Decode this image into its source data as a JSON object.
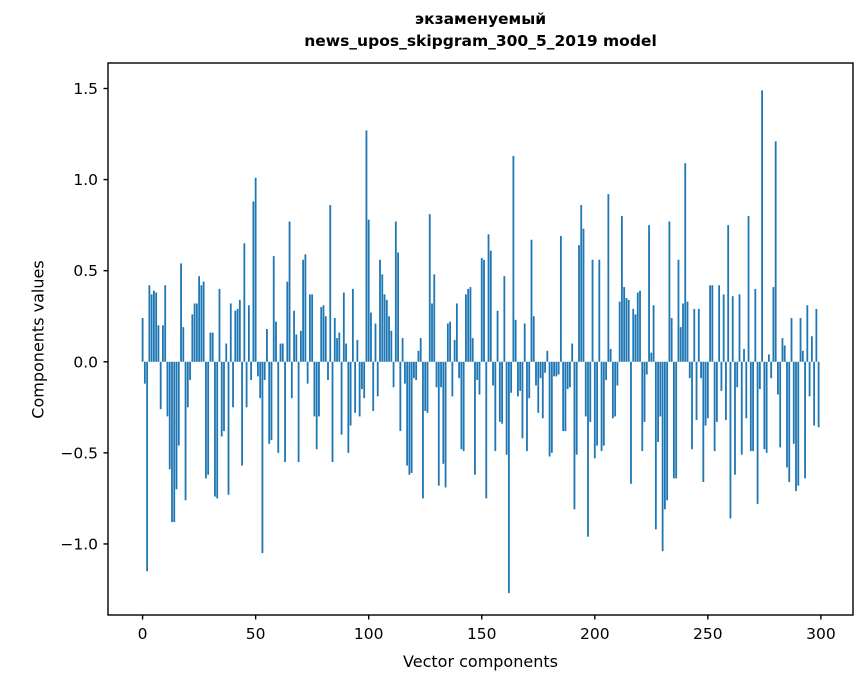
{
  "chart_data": {
    "type": "bar",
    "title": "экзаменуемый",
    "subtitle": "news_upos_skipgram_300_5_2019 model",
    "xlabel": "Vector components",
    "ylabel": "Components values",
    "bar_color": "#1f77b4",
    "axis_color": "#000000",
    "xticks": [
      0,
      50,
      100,
      150,
      200,
      250,
      300
    ],
    "yticks": [
      -1.0,
      -0.5,
      0.0,
      0.5,
      1.0,
      1.5
    ],
    "xlim": [
      -15.3,
      314.2
    ],
    "ylim": [
      -1.39,
      1.64
    ],
    "bar_width_units": 0.8,
    "x_start": 0,
    "legend": "none",
    "grid": false,
    "values": [
      0.24,
      -0.12,
      -1.15,
      0.42,
      0.37,
      0.39,
      0.38,
      0.2,
      -0.26,
      0.2,
      0.42,
      -0.3,
      -0.59,
      -0.88,
      -0.88,
      -0.7,
      -0.46,
      0.54,
      0.19,
      -0.76,
      -0.25,
      -0.1,
      0.26,
      0.32,
      0.32,
      0.47,
      0.42,
      0.44,
      -0.64,
      -0.62,
      0.16,
      0.16,
      -0.74,
      -0.75,
      0.4,
      -0.41,
      -0.38,
      0.1,
      -0.73,
      0.32,
      -0.25,
      0.28,
      0.29,
      0.34,
      -0.57,
      0.65,
      -0.25,
      0.31,
      -0.1,
      0.88,
      1.01,
      -0.08,
      -0.2,
      -1.05,
      -0.1,
      0.18,
      -0.45,
      -0.43,
      0.58,
      0.22,
      -0.5,
      0.1,
      0.1,
      -0.55,
      0.44,
      0.77,
      -0.2,
      0.28,
      0.15,
      -0.55,
      0.17,
      0.56,
      0.59,
      -0.12,
      0.37,
      0.37,
      -0.3,
      -0.48,
      -0.3,
      0.3,
      0.31,
      0.25,
      -0.1,
      0.86,
      -0.55,
      0.24,
      0.13,
      0.16,
      -0.4,
      0.38,
      0.1,
      -0.5,
      -0.35,
      0.4,
      -0.28,
      0.12,
      -0.3,
      -0.15,
      -0.2,
      1.27,
      0.78,
      0.27,
      -0.27,
      0.21,
      -0.19,
      0.56,
      0.48,
      0.37,
      0.34,
      0.25,
      0.17,
      -0.14,
      0.77,
      0.6,
      -0.38,
      0.13,
      -0.12,
      -0.57,
      -0.62,
      -0.61,
      -0.09,
      -0.1,
      0.06,
      0.13,
      -0.75,
      -0.27,
      -0.28,
      0.81,
      0.32,
      0.48,
      -0.14,
      -0.68,
      -0.14,
      -0.56,
      -0.69,
      0.21,
      0.22,
      -0.19,
      0.12,
      0.32,
      -0.09,
      -0.48,
      -0.49,
      0.37,
      0.4,
      0.41,
      0.13,
      -0.62,
      -0.1,
      -0.18,
      0.57,
      0.56,
      -0.75,
      0.7,
      0.61,
      -0.13,
      -0.49,
      0.28,
      -0.33,
      -0.34,
      0.47,
      -0.51,
      -1.27,
      -0.17,
      1.13,
      0.23,
      -0.19,
      -0.16,
      -0.42,
      0.21,
      -0.49,
      -0.2,
      0.67,
      0.25,
      -0.13,
      -0.28,
      -0.09,
      -0.31,
      -0.06,
      0.06,
      -0.52,
      -0.5,
      -0.08,
      -0.08,
      -0.07,
      0.69,
      -0.38,
      -0.38,
      -0.15,
      -0.14,
      0.1,
      -0.81,
      -0.51,
      0.64,
      0.86,
      0.73,
      -0.3,
      -0.96,
      -0.33,
      0.56,
      -0.53,
      -0.46,
      0.56,
      -0.49,
      -0.46,
      -0.1,
      0.92,
      0.07,
      -0.31,
      -0.3,
      -0.13,
      0.33,
      0.8,
      0.41,
      0.35,
      0.34,
      -0.67,
      0.29,
      0.26,
      0.38,
      0.39,
      -0.49,
      -0.33,
      -0.07,
      0.75,
      0.05,
      0.31,
      -0.92,
      -0.44,
      -0.3,
      -1.04,
      -0.81,
      -0.76,
      0.77,
      0.24,
      -0.64,
      -0.64,
      0.56,
      0.19,
      0.32,
      1.09,
      0.33,
      -0.09,
      -0.48,
      0.29,
      -0.32,
      0.29,
      -0.09,
      -0.66,
      -0.35,
      -0.31,
      0.42,
      0.42,
      -0.49,
      -0.33,
      0.42,
      -0.16,
      0.37,
      -0.32,
      0.75,
      -0.86,
      0.36,
      -0.62,
      -0.14,
      0.37,
      -0.51,
      0.07,
      -0.31,
      0.8,
      -0.49,
      -0.49,
      0.4,
      -0.78,
      -0.15,
      1.49,
      -0.48,
      -0.5,
      0.04,
      -0.09,
      0.41,
      1.21,
      -0.18,
      -0.47,
      0.13,
      0.09,
      -0.58,
      -0.66,
      0.24,
      -0.45,
      -0.71,
      -0.68,
      0.24,
      0.06,
      -0.64,
      0.31,
      -0.19,
      0.14,
      -0.35,
      0.29,
      -0.36
    ]
  }
}
